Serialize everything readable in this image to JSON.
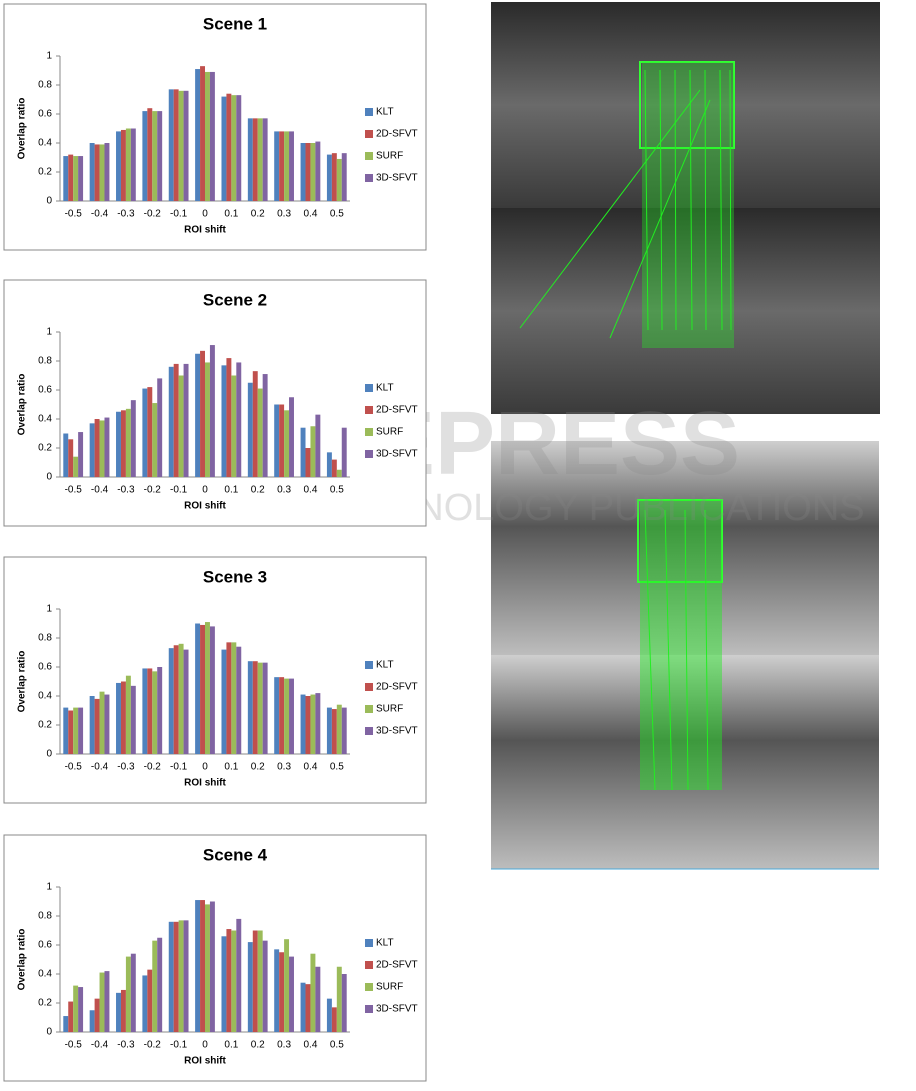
{
  "chart_data": [
    {
      "type": "bar",
      "title": "Scene 1",
      "xlabel": "ROI shift",
      "ylabel": "Overlap ratio",
      "categories": [
        "-0.5",
        "-0.4",
        "-0.3",
        "-0.2",
        "-0.1",
        "0",
        "0.1",
        "0.2",
        "0.3",
        "0.4",
        "0.5"
      ],
      "series": [
        {
          "name": "KLT",
          "color": "#4f81bd",
          "values": [
            0.31,
            0.4,
            0.48,
            0.62,
            0.77,
            0.91,
            0.72,
            0.57,
            0.48,
            0.4,
            0.32
          ]
        },
        {
          "name": "2D-SFVT",
          "color": "#c0504d",
          "values": [
            0.32,
            0.39,
            0.49,
            0.64,
            0.77,
            0.93,
            0.74,
            0.57,
            0.48,
            0.4,
            0.33
          ]
        },
        {
          "name": "SURF",
          "color": "#9bbb59",
          "values": [
            0.31,
            0.39,
            0.5,
            0.62,
            0.76,
            0.89,
            0.73,
            0.57,
            0.48,
            0.4,
            0.29
          ]
        },
        {
          "name": "3D-SFVT",
          "color": "#8064a2",
          "values": [
            0.31,
            0.4,
            0.5,
            0.62,
            0.76,
            0.89,
            0.73,
            0.57,
            0.48,
            0.41,
            0.33
          ]
        }
      ],
      "ylim": [
        0,
        1
      ],
      "yticks": [
        0,
        0.2,
        0.4,
        0.6,
        0.8,
        1
      ],
      "grid": false,
      "legend": "right"
    },
    {
      "type": "bar",
      "title": "Scene 2",
      "xlabel": "ROI shift",
      "ylabel": "Overlap ratio",
      "categories": [
        "-0.5",
        "-0.4",
        "-0.3",
        "-0.2",
        "-0.1",
        "0",
        "0.1",
        "0.2",
        "0.3",
        "0.4",
        "0.5"
      ],
      "series": [
        {
          "name": "KLT",
          "color": "#4f81bd",
          "values": [
            0.3,
            0.37,
            0.45,
            0.61,
            0.76,
            0.85,
            0.77,
            0.65,
            0.5,
            0.34,
            0.17
          ]
        },
        {
          "name": "2D-SFVT",
          "color": "#c0504d",
          "values": [
            0.26,
            0.4,
            0.46,
            0.62,
            0.78,
            0.87,
            0.82,
            0.73,
            0.5,
            0.2,
            0.12
          ]
        },
        {
          "name": "SURF",
          "color": "#9bbb59",
          "values": [
            0.14,
            0.39,
            0.47,
            0.51,
            0.7,
            0.79,
            0.7,
            0.61,
            0.46,
            0.35,
            0.05
          ]
        },
        {
          "name": "3D-SFVT",
          "color": "#8064a2",
          "values": [
            0.31,
            0.41,
            0.53,
            0.68,
            0.78,
            0.91,
            0.79,
            0.71,
            0.55,
            0.43,
            0.34
          ]
        }
      ],
      "ylim": [
        0,
        1
      ],
      "yticks": [
        0,
        0.2,
        0.4,
        0.6,
        0.8,
        1
      ],
      "grid": false,
      "legend": "right"
    },
    {
      "type": "bar",
      "title": "Scene 3",
      "xlabel": "ROI shift",
      "ylabel": "Overlap ratio",
      "categories": [
        "-0.5",
        "-0.4",
        "-0.3",
        "-0.2",
        "-0.1",
        "0",
        "0.1",
        "0.2",
        "0.3",
        "0.4",
        "0.5"
      ],
      "series": [
        {
          "name": "KLT",
          "color": "#4f81bd",
          "values": [
            0.32,
            0.4,
            0.49,
            0.59,
            0.73,
            0.9,
            0.72,
            0.64,
            0.53,
            0.41,
            0.32
          ]
        },
        {
          "name": "2D-SFVT",
          "color": "#c0504d",
          "values": [
            0.3,
            0.38,
            0.5,
            0.59,
            0.75,
            0.89,
            0.77,
            0.64,
            0.53,
            0.4,
            0.31
          ]
        },
        {
          "name": "SURF",
          "color": "#9bbb59",
          "values": [
            0.32,
            0.43,
            0.54,
            0.57,
            0.76,
            0.91,
            0.77,
            0.63,
            0.52,
            0.41,
            0.34
          ]
        },
        {
          "name": "3D-SFVT",
          "color": "#8064a2",
          "values": [
            0.32,
            0.41,
            0.47,
            0.6,
            0.72,
            0.88,
            0.74,
            0.63,
            0.52,
            0.42,
            0.32
          ]
        }
      ],
      "ylim": [
        0,
        1
      ],
      "yticks": [
        0,
        0.2,
        0.4,
        0.6,
        0.8,
        1
      ],
      "grid": false,
      "legend": "right"
    },
    {
      "type": "bar",
      "title": "Scene 4",
      "xlabel": "ROI shift",
      "ylabel": "Overlap ratio",
      "categories": [
        "-0.5",
        "-0.4",
        "-0.3",
        "-0.2",
        "-0.1",
        "0",
        "0.1",
        "0.2",
        "0.3",
        "0.4",
        "0.5"
      ],
      "series": [
        {
          "name": "KLT",
          "color": "#4f81bd",
          "values": [
            0.11,
            0.15,
            0.27,
            0.39,
            0.76,
            0.91,
            0.66,
            0.62,
            0.57,
            0.34,
            0.23
          ]
        },
        {
          "name": "2D-SFVT",
          "color": "#c0504d",
          "values": [
            0.21,
            0.23,
            0.29,
            0.43,
            0.76,
            0.91,
            0.71,
            0.7,
            0.55,
            0.33,
            0.17
          ]
        },
        {
          "name": "SURF",
          "color": "#9bbb59",
          "values": [
            0.32,
            0.41,
            0.52,
            0.63,
            0.77,
            0.88,
            0.7,
            0.7,
            0.64,
            0.54,
            0.45
          ]
        },
        {
          "name": "3D-SFVT",
          "color": "#8064a2",
          "values": [
            0.31,
            0.42,
            0.54,
            0.65,
            0.77,
            0.9,
            0.78,
            0.63,
            0.52,
            0.45,
            0.4
          ]
        }
      ],
      "ylim": [
        0,
        1
      ],
      "yticks": [
        0,
        0.2,
        0.4,
        0.6,
        0.8,
        1
      ],
      "grid": false,
      "legend": "right"
    }
  ],
  "watermark": {
    "title": "SCITEPRESS",
    "subtitle": "SCIENCE AND TECHNOLOGY PUBLICATIONS"
  }
}
